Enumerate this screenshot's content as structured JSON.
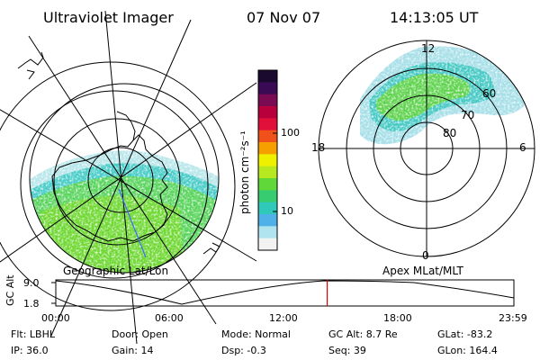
{
  "header": {
    "title": "Ultraviolet Imager",
    "date": "07 Nov 07",
    "time": "14:13:05 UT"
  },
  "left_map": {
    "caption": "Geographic Lat/Lon"
  },
  "right_map": {
    "caption": "Apex MLat/MLT",
    "mlt_labels": {
      "top": "12",
      "left": "18",
      "right": "6",
      "bottom": "0"
    },
    "lat_labels": [
      "60",
      "70",
      "80"
    ]
  },
  "colorbar": {
    "unit_label": "photon cm⁻²s⁻¹",
    "tick_labels": [
      "100",
      "10"
    ],
    "colors_top_to_bottom": [
      "#1a0a2e",
      "#3a0a55",
      "#7a0a52",
      "#b8003c",
      "#e0103a",
      "#f0501a",
      "#f5a000",
      "#eef000",
      "#b8e820",
      "#60d83a",
      "#38cc70",
      "#30c8b8",
      "#50b0e8",
      "#b0e4ee",
      "#f2f2f2"
    ]
  },
  "altitude_plot": {
    "ylabel": "GC Alt",
    "y_max": "9.0",
    "y_min": "1.8",
    "x_ticks": [
      "00:00",
      "06:00",
      "12:00",
      "18:00",
      "23:59"
    ],
    "current_time_hours": 14.22,
    "marker_color": "#e00000"
  },
  "info": {
    "flt": "Flt: LBHL",
    "ip": "IP: 36.0",
    "door": "Door: Open",
    "gain": "Gain: 14",
    "mode": "Mode: Normal",
    "dsp": "Dsp:    -0.3",
    "gc_alt": "GC Alt: 8.7 Re",
    "seq": "Seq: 39",
    "glat": "GLat:  -83.2",
    "glon": "GLon: 164.4"
  }
}
